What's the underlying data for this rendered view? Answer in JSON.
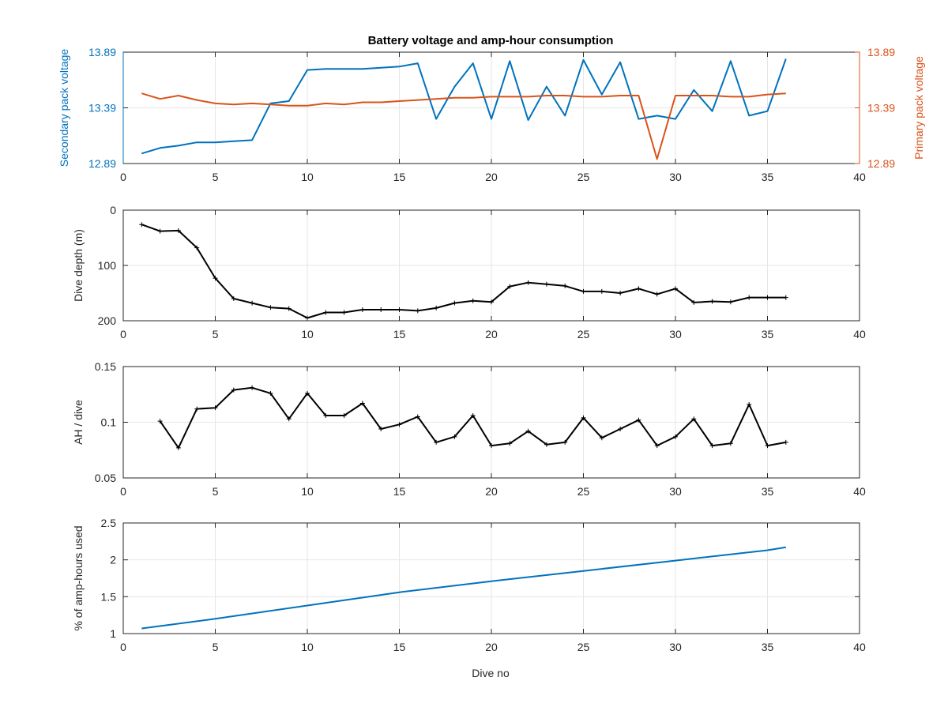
{
  "figure": {
    "title": "Battery voltage and amp-hour consumption",
    "xlabel": "Dive no",
    "colors": {
      "secondary": "#0072BD",
      "primary": "#D95319",
      "black": "#000000",
      "grid": "#e6e6e6",
      "axis": "#262626"
    }
  },
  "chart_data": [
    {
      "type": "line",
      "title": "Battery voltage and amp-hour consumption",
      "xlabel": "",
      "ylabel": "Secondary pack voltage",
      "ylabel_right": "Primary pack voltage",
      "xlim": [
        0,
        40
      ],
      "x_ticks": [
        "0",
        "5",
        "10",
        "15",
        "20",
        "25",
        "30",
        "35",
        "40"
      ],
      "ylim": [
        12.89,
        13.89
      ],
      "y_ticks": [
        "12.89",
        "13.39",
        "13.89"
      ],
      "ylim_right": [
        12.89,
        13.89
      ],
      "y_ticks_right": [
        "12.89",
        "13.39",
        "13.89"
      ],
      "grid": true,
      "series": [
        {
          "axis": "left",
          "color": "#0072BD",
          "x": [
            1,
            2,
            3,
            4,
            5,
            6,
            7,
            8,
            9,
            10,
            11,
            12,
            13,
            14,
            15,
            16,
            17,
            18,
            19,
            20,
            21,
            22,
            23,
            24,
            25,
            26,
            27,
            28,
            29,
            30,
            31,
            32,
            33,
            34,
            35,
            36
          ],
          "values": [
            12.98,
            13.03,
            13.05,
            13.08,
            13.08,
            13.09,
            13.1,
            13.43,
            13.45,
            13.73,
            13.74,
            13.74,
            13.74,
            13.75,
            13.76,
            13.79,
            13.29,
            13.58,
            13.79,
            13.29,
            13.81,
            13.28,
            13.58,
            13.32,
            13.82,
            13.51,
            13.8,
            13.29,
            13.32,
            13.29,
            13.55,
            13.36,
            13.81,
            13.32,
            13.36,
            13.83
          ]
        },
        {
          "axis": "right",
          "color": "#D95319",
          "x": [
            1,
            2,
            3,
            4,
            5,
            6,
            7,
            8,
            9,
            10,
            11,
            12,
            13,
            14,
            15,
            16,
            17,
            18,
            19,
            20,
            21,
            22,
            23,
            24,
            25,
            26,
            27,
            28,
            29,
            30,
            31,
            32,
            33,
            34,
            35,
            36
          ],
          "values": [
            13.52,
            13.47,
            13.5,
            13.46,
            13.43,
            13.42,
            13.43,
            13.42,
            13.41,
            13.41,
            13.43,
            13.42,
            13.44,
            13.44,
            13.45,
            13.46,
            13.47,
            13.48,
            13.48,
            13.49,
            13.49,
            13.49,
            13.5,
            13.5,
            13.49,
            13.49,
            13.5,
            13.5,
            12.93,
            13.5,
            13.5,
            13.5,
            13.49,
            13.49,
            13.51,
            13.52
          ]
        }
      ]
    },
    {
      "type": "line",
      "xlabel": "",
      "ylabel": "Dive depth (m)",
      "xlim": [
        0,
        40
      ],
      "x_ticks": [
        "0",
        "5",
        "10",
        "15",
        "20",
        "25",
        "30",
        "35",
        "40"
      ],
      "ylim": [
        0,
        200
      ],
      "y_reversed": true,
      "y_ticks": [
        "0",
        "100",
        "200"
      ],
      "grid": true,
      "series": [
        {
          "color": "#000000",
          "marker": "+",
          "x": [
            1,
            2,
            3,
            4,
            5,
            6,
            7,
            8,
            9,
            10,
            11,
            12,
            13,
            14,
            15,
            16,
            17,
            18,
            19,
            20,
            21,
            22,
            23,
            24,
            25,
            26,
            27,
            28,
            29,
            30,
            31,
            32,
            33,
            34,
            35,
            36
          ],
          "values": [
            26,
            38,
            37,
            68,
            123,
            160,
            168,
            176,
            178,
            195,
            185,
            185,
            180,
            180,
            180,
            182,
            177,
            168,
            164,
            166,
            138,
            131,
            134,
            137,
            147,
            147,
            150,
            142,
            152,
            142,
            167,
            165,
            166,
            158,
            158,
            158
          ]
        }
      ]
    },
    {
      "type": "line",
      "xlabel": "",
      "ylabel": "AH / dive",
      "xlim": [
        0,
        40
      ],
      "x_ticks": [
        "0",
        "5",
        "10",
        "15",
        "20",
        "25",
        "30",
        "35",
        "40"
      ],
      "ylim": [
        0.05,
        0.15
      ],
      "y_ticks": [
        "0.05",
        "0.1",
        "0.15"
      ],
      "grid": true,
      "series": [
        {
          "color": "#000000",
          "marker": "+",
          "x": [
            2,
            3,
            4,
            5,
            6,
            7,
            8,
            9,
            10,
            11,
            12,
            13,
            14,
            15,
            16,
            17,
            18,
            19,
            20,
            21,
            22,
            23,
            24,
            25,
            26,
            27,
            28,
            29,
            30,
            31,
            32,
            33,
            34,
            35,
            36
          ],
          "values": [
            0.101,
            0.077,
            0.112,
            0.113,
            0.129,
            0.131,
            0.126,
            0.103,
            0.126,
            0.106,
            0.106,
            0.117,
            0.094,
            0.098,
            0.105,
            0.082,
            0.087,
            0.106,
            0.079,
            0.081,
            0.092,
            0.08,
            0.082,
            0.104,
            0.086,
            0.094,
            0.102,
            0.079,
            0.087,
            0.103,
            0.079,
            0.081,
            0.116,
            0.079,
            0.082
          ]
        }
      ]
    },
    {
      "type": "line",
      "xlabel": "Dive no",
      "ylabel": "% of amp-hours used",
      "xlim": [
        0,
        40
      ],
      "x_ticks": [
        "0",
        "5",
        "10",
        "15",
        "20",
        "25",
        "30",
        "35",
        "40"
      ],
      "ylim": [
        1,
        2.5
      ],
      "y_ticks": [
        "1",
        "1.5",
        "2",
        "2.5"
      ],
      "grid": true,
      "series": [
        {
          "color": "#0072BD",
          "x": [
            1,
            36
          ],
          "values": [
            1.07,
            2.17
          ],
          "interpolate": "curved",
          "points": [
            [
              1,
              1.07
            ],
            [
              5,
              1.2
            ],
            [
              10,
              1.38
            ],
            [
              15,
              1.56
            ],
            [
              20,
              1.71
            ],
            [
              25,
              1.85
            ],
            [
              30,
              1.99
            ],
            [
              35,
              2.13
            ],
            [
              36,
              2.17
            ]
          ]
        }
      ]
    }
  ]
}
